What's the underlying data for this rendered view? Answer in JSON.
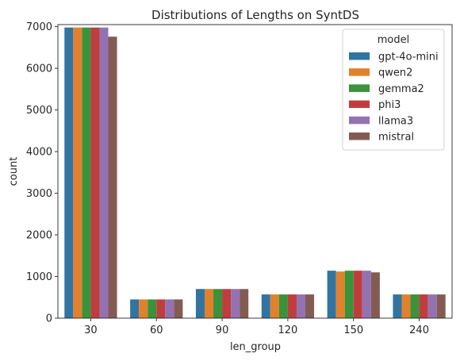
{
  "chart_data": {
    "type": "bar",
    "title": "Distributions of Lengths on SyntDS",
    "xlabel": "len_group",
    "ylabel": "count",
    "ylim": [
      0,
      7050
    ],
    "yticks": [
      0,
      1000,
      2000,
      3000,
      4000,
      5000,
      6000,
      7000
    ],
    "categories": [
      "30",
      "60",
      "90",
      "120",
      "150",
      "240"
    ],
    "legend": {
      "title": "model",
      "placement": "top-right"
    },
    "series": [
      {
        "name": "gpt-4o-mini",
        "color": "#3274a1",
        "values": [
          6980,
          450,
          700,
          570,
          1140,
          570
        ]
      },
      {
        "name": "qwen2",
        "color": "#e1812c",
        "values": [
          6980,
          450,
          700,
          570,
          1120,
          570
        ]
      },
      {
        "name": "gemma2",
        "color": "#3a923a",
        "values": [
          6980,
          450,
          700,
          570,
          1140,
          570
        ]
      },
      {
        "name": "phi3",
        "color": "#c03d3e",
        "values": [
          6980,
          450,
          700,
          570,
          1140,
          570
        ]
      },
      {
        "name": "llama3",
        "color": "#9372b2",
        "values": [
          6980,
          450,
          700,
          570,
          1140,
          570
        ]
      },
      {
        "name": "mistral",
        "color": "#845b53",
        "values": [
          6760,
          450,
          700,
          570,
          1100,
          570
        ]
      }
    ]
  }
}
